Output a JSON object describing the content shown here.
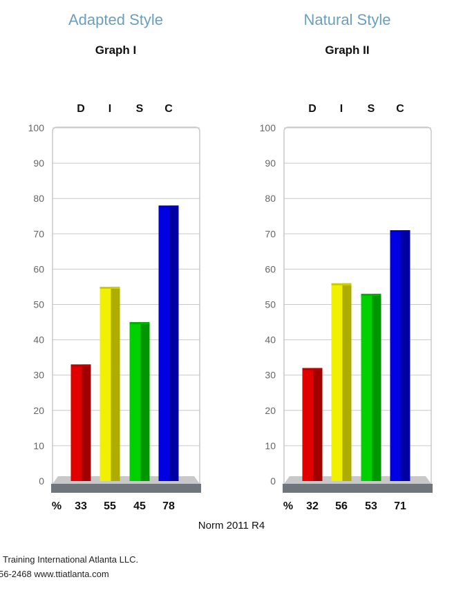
{
  "colors": {
    "title": "#6a9fbf",
    "D": "#e00000",
    "I": "#f0f000",
    "S": "#00d000",
    "C": "#0000e0",
    "base": "#6e757c",
    "floor": "#c8c8c8",
    "grid": "#c8c8c8"
  },
  "panels": [
    {
      "style_title": "Adapted Style",
      "graph_title": "Graph I"
    },
    {
      "style_title": "Natural Style",
      "graph_title": "Graph II"
    }
  ],
  "chart_data": [
    {
      "type": "bar",
      "title": "Graph I",
      "categories": [
        "D",
        "I",
        "S",
        "C"
      ],
      "values": [
        33,
        55,
        45,
        78
      ],
      "yticks": [
        "0",
        "10",
        "20",
        "30",
        "40",
        "50",
        "60",
        "70",
        "80",
        "90",
        "100"
      ],
      "ylim": [
        0,
        100
      ],
      "value_prefix": "%",
      "grid": true
    },
    {
      "type": "bar",
      "title": "Graph II",
      "categories": [
        "D",
        "I",
        "S",
        "C"
      ],
      "values": [
        32,
        56,
        53,
        71
      ],
      "yticks": [
        "0",
        "10",
        "20",
        "30",
        "40",
        "50",
        "60",
        "70",
        "80",
        "90",
        "100"
      ],
      "ylim": [
        0,
        100
      ],
      "value_prefix": "%",
      "grid": true
    }
  ],
  "norm": "Norm 2011 R4",
  "footer": {
    "line1": "Training International Atlanta LLC.",
    "line2": "56-2468  www.ttiatlanta.com"
  }
}
